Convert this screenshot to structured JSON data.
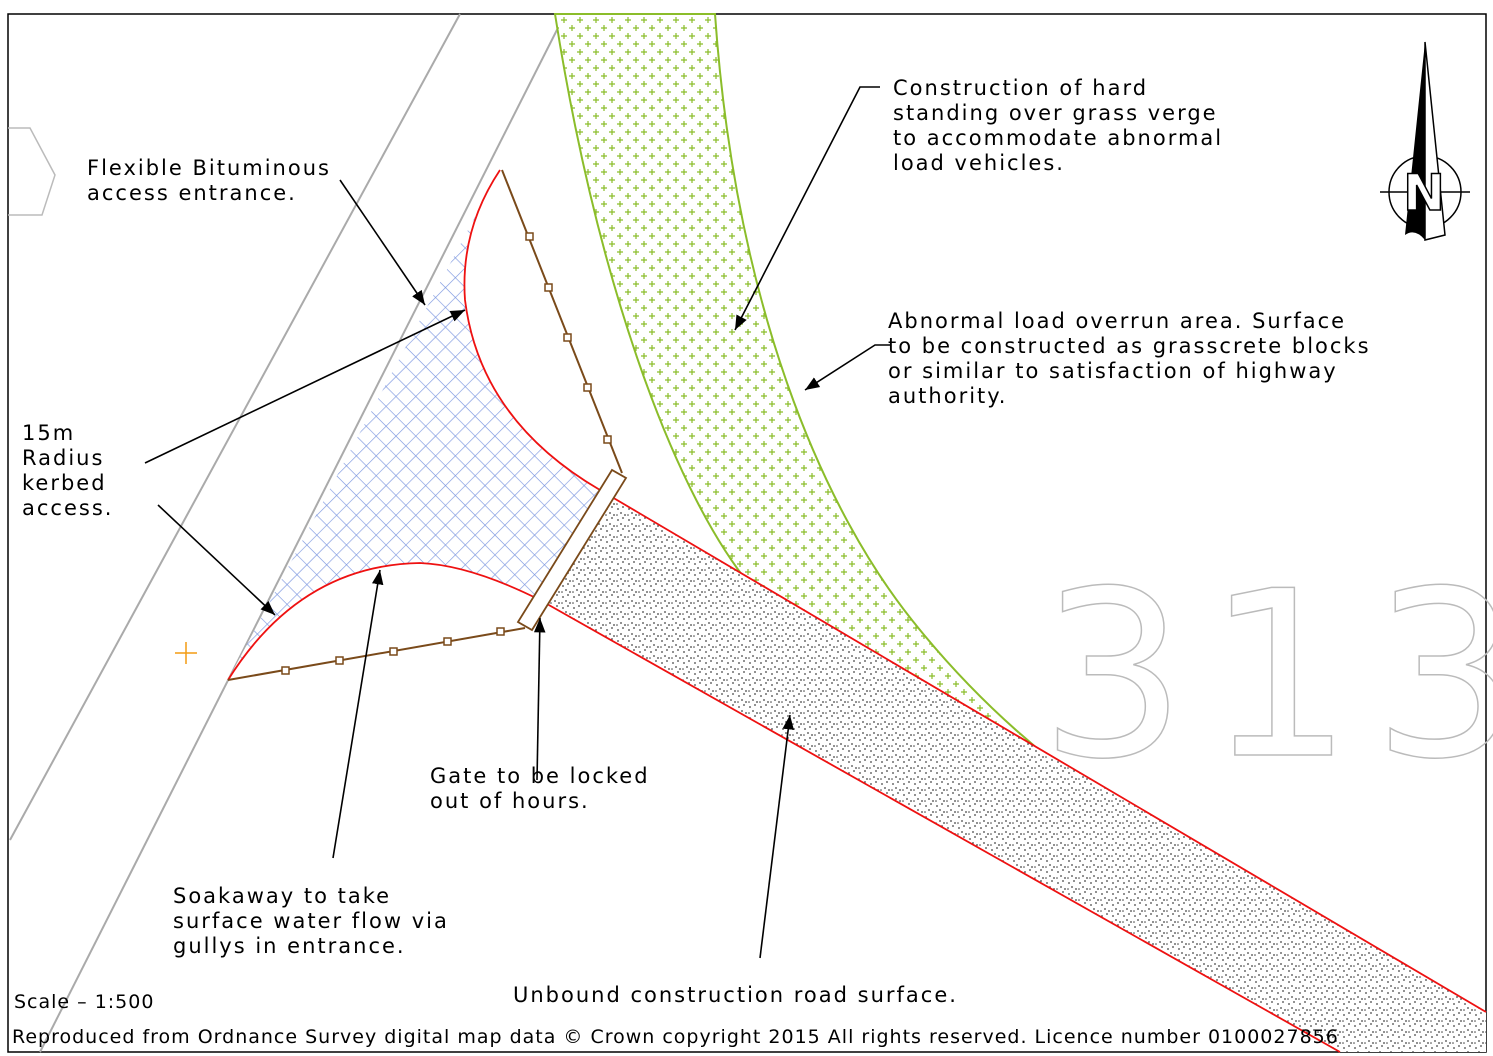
{
  "annotations": [
    {
      "lines": [
        "Flexible Bituminous",
        "access entrance."
      ]
    },
    {
      "lines": [
        "Construction of hard",
        "standing over grass verge",
        "to accommodate abnormal",
        "load vehicles."
      ]
    },
    {
      "lines": [
        "Abnormal load overrun area. Surface",
        "to be constructed as grasscrete blocks",
        "or similar to satisfaction of highway",
        "authority."
      ]
    },
    {
      "lines": [
        "15m",
        "Radius",
        "kerbed",
        "access."
      ]
    },
    {
      "lines": [
        "Gate to be locked",
        "out of hours."
      ]
    },
    {
      "lines": [
        "Soakaway to take",
        "surface water flow via",
        "gullys in entrance."
      ]
    },
    {
      "lines": [
        "Unbound construction road surface."
      ]
    }
  ],
  "road_number": "313",
  "north": "N",
  "scale": "Scale – 1:500",
  "footer": "Reproduced from Ordnance Survey digital map data © Crown copyright 2015 All rights reserved. Licence number 0100027856"
}
